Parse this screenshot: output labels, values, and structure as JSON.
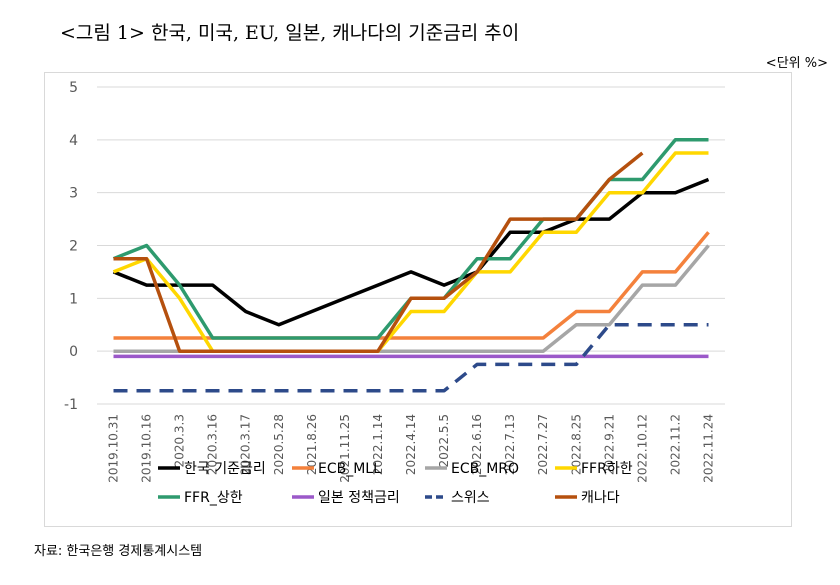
{
  "title": "<그림 1> 한국, 미국, EU, 일본, 캐나다의 기준금리 추이",
  "unit": "<단위 %>",
  "source": "자료: 한국은행 경제통계시스템",
  "chart_data": {
    "type": "line",
    "categories": [
      "2019.10.31",
      "2019.10.16",
      "2020.3.3",
      "2020.3.16",
      "2020.3.17",
      "2020.5.28",
      "2021.8.26",
      "2021.11.25",
      "2022.1.14",
      "2022.4.14",
      "2022.5.5",
      "2022.6.16",
      "2022.7.13",
      "2022.7.27",
      "2022.8.25",
      "2022.9.21",
      "2022.10.12",
      "2022.11.2",
      "2022.11.24"
    ],
    "ylim": [
      -1,
      5
    ],
    "yticks": [
      "-1",
      "0",
      "1",
      "2",
      "3",
      "4",
      "5"
    ],
    "legend_position": "bottom",
    "series": [
      {
        "name": "한국 기준금리",
        "color": "#000000",
        "dash": false,
        "values": [
          1.5,
          1.25,
          1.25,
          1.25,
          0.75,
          0.5,
          0.75,
          1.0,
          1.25,
          1.5,
          1.25,
          1.5,
          2.25,
          2.25,
          2.5,
          2.5,
          3.0,
          3.0,
          3.25
        ]
      },
      {
        "name": "ECB_MLL",
        "color": "#F4813C",
        "dash": false,
        "values": [
          0.25,
          0.25,
          0.25,
          0.25,
          0.25,
          0.25,
          0.25,
          0.25,
          0.25,
          0.25,
          0.25,
          0.25,
          0.25,
          0.25,
          0.75,
          0.75,
          1.5,
          1.5,
          2.25
        ]
      },
      {
        "name": "ECB_MRO",
        "color": "#A6A6A6",
        "dash": false,
        "values": [
          0,
          0,
          0,
          0,
          0,
          0,
          0,
          0,
          0,
          0,
          0,
          0,
          0,
          0,
          0.5,
          0.5,
          1.25,
          1.25,
          2.0
        ]
      },
      {
        "name": "FFR하한",
        "color": "#FFD700",
        "dash": false,
        "values": [
          1.5,
          1.75,
          1.0,
          0,
          0,
          0,
          0,
          0,
          0,
          0.75,
          0.75,
          1.5,
          1.5,
          2.25,
          2.25,
          3.0,
          3.0,
          3.75,
          3.75
        ]
      },
      {
        "name": "FFR_상한",
        "color": "#2E9A6E",
        "dash": false,
        "values": [
          1.75,
          2.0,
          1.25,
          0.25,
          0.25,
          0.25,
          0.25,
          0.25,
          0.25,
          1.0,
          1.0,
          1.75,
          1.75,
          2.5,
          2.5,
          3.25,
          3.25,
          4.0,
          4.0
        ]
      },
      {
        "name": "일본 정책금리",
        "color": "#9B59C9",
        "dash": false,
        "values": [
          -0.1,
          -0.1,
          -0.1,
          -0.1,
          -0.1,
          -0.1,
          -0.1,
          -0.1,
          -0.1,
          -0.1,
          -0.1,
          -0.1,
          -0.1,
          -0.1,
          -0.1,
          -0.1,
          -0.1,
          -0.1,
          -0.1
        ]
      },
      {
        "name": "스위스",
        "color": "#2D4A8A",
        "dash": true,
        "values": [
          -0.75,
          -0.75,
          -0.75,
          -0.75,
          -0.75,
          -0.75,
          -0.75,
          -0.75,
          -0.75,
          -0.75,
          -0.75,
          -0.25,
          -0.25,
          -0.25,
          -0.25,
          0.5,
          0.5,
          0.5,
          0.5
        ]
      },
      {
        "name": "캐나다",
        "color": "#B5500E",
        "dash": false,
        "values": [
          1.75,
          1.75,
          0,
          0,
          0,
          0,
          0,
          0,
          0,
          1.0,
          1.0,
          1.5,
          2.5,
          2.5,
          2.5,
          3.25,
          3.75,
          null,
          null
        ]
      }
    ]
  }
}
